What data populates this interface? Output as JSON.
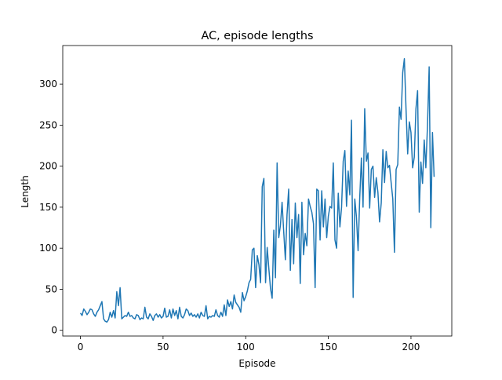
{
  "chart_data": {
    "type": "line",
    "title": "AC, episode lengths",
    "xlabel": "Episode",
    "ylabel": "Length",
    "x": [
      0,
      1,
      2,
      3,
      4,
      5,
      6,
      7,
      8,
      9,
      10,
      11,
      12,
      13,
      14,
      15,
      16,
      17,
      18,
      19,
      20,
      21,
      22,
      23,
      24,
      25,
      26,
      27,
      28,
      29,
      30,
      31,
      32,
      33,
      34,
      35,
      36,
      37,
      38,
      39,
      40,
      41,
      42,
      43,
      44,
      45,
      46,
      47,
      48,
      49,
      50,
      51,
      52,
      53,
      54,
      55,
      56,
      57,
      58,
      59,
      60,
      61,
      62,
      63,
      64,
      65,
      66,
      67,
      68,
      69,
      70,
      71,
      72,
      73,
      74,
      75,
      76,
      77,
      78,
      79,
      80,
      81,
      82,
      83,
      84,
      85,
      86,
      87,
      88,
      89,
      90,
      91,
      92,
      93,
      94,
      95,
      96,
      97,
      98,
      99,
      100,
      101,
      102,
      103,
      104,
      105,
      106,
      107,
      108,
      109,
      110,
      111,
      112,
      113,
      114,
      115,
      116,
      117,
      118,
      119,
      120,
      121,
      122,
      123,
      124,
      125,
      126,
      127,
      128,
      129,
      130,
      131,
      132,
      133,
      134,
      135,
      136,
      137,
      138,
      139,
      140,
      141,
      142,
      143,
      144,
      145,
      146,
      147,
      148,
      149,
      150,
      151,
      152,
      153,
      154,
      155,
      156,
      157,
      158,
      159,
      160,
      161,
      162,
      163,
      164,
      165,
      166,
      167,
      168,
      169,
      170,
      171,
      172,
      173,
      174,
      175,
      176,
      177,
      178,
      179,
      180,
      181,
      182,
      183,
      184,
      185,
      186,
      187,
      188,
      189,
      190,
      191,
      192,
      193,
      194,
      195,
      196,
      197,
      198,
      199,
      200,
      201,
      202,
      203,
      204,
      205,
      206,
      207,
      208,
      209,
      210,
      211,
      212,
      213,
      214
    ],
    "series": [
      {
        "name": "episode lengths",
        "color": "#1f77b4",
        "values": [
          21,
          18,
          26,
          23,
          19,
          22,
          26,
          25,
          20,
          17,
          22,
          25,
          30,
          35,
          14,
          11,
          10,
          13,
          22,
          16,
          24,
          15,
          47,
          30,
          52,
          14,
          16,
          18,
          17,
          22,
          17,
          18,
          15,
          14,
          19,
          18,
          13,
          15,
          14,
          28,
          16,
          14,
          20,
          17,
          12,
          18,
          20,
          16,
          19,
          15,
          17,
          27,
          16,
          17,
          25,
          15,
          26,
          18,
          24,
          14,
          28,
          17,
          15,
          19,
          26,
          24,
          18,
          21,
          17,
          19,
          16,
          20,
          15,
          22,
          18,
          17,
          30,
          14,
          17,
          16,
          18,
          17,
          25,
          18,
          16,
          22,
          17,
          31,
          18,
          37,
          29,
          35,
          26,
          43,
          34,
          31,
          28,
          22,
          46,
          36,
          41,
          48,
          58,
          62,
          98,
          100,
          52,
          91,
          80,
          58,
          175,
          185,
          58,
          101,
          75,
          51,
          39,
          122,
          64,
          204,
          113,
          128,
          156,
          120,
          86,
          141,
          172,
          73,
          135,
          81,
          155,
          113,
          141,
          57,
          156,
          92,
          118,
          103,
          160,
          151,
          144,
          130,
          52,
          172,
          170,
          110,
          170,
          126,
          160,
          113,
          139,
          151,
          149,
          204,
          110,
          100,
          167,
          126,
          150,
          206,
          219,
          151,
          194,
          165,
          256,
          40,
          160,
          138,
          97,
          162,
          210,
          150,
          270,
          206,
          216,
          149,
          196,
          200,
          162,
          186,
          168,
          132,
          155,
          220,
          180,
          218,
          198,
          201,
          180,
          160,
          95,
          196,
          202,
          272,
          257,
          314,
          331,
          270,
          215,
          254,
          241,
          198,
          211,
          270,
          292,
          144,
          205,
          179,
          232,
          198,
          250,
          321,
          125,
          241,
          187
        ]
      }
    ],
    "xlim": [
      -10.7,
      224.7
    ],
    "ylim": [
      -7,
      347
    ],
    "xticks": [
      0,
      50,
      100,
      150,
      200
    ],
    "yticks": [
      0,
      50,
      100,
      150,
      200,
      250,
      300
    ]
  }
}
